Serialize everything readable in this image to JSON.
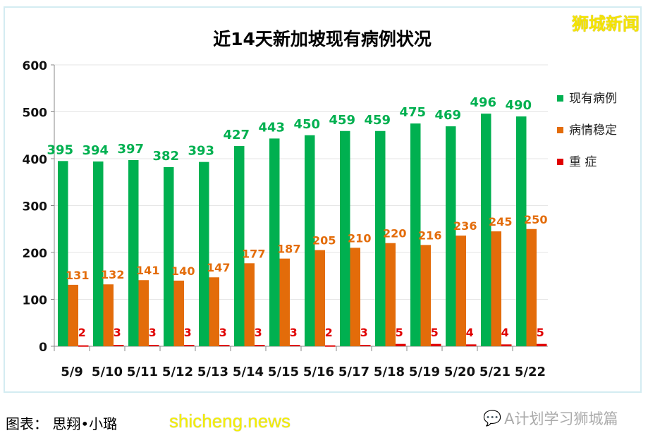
{
  "watermark_logo": "狮城新闻",
  "credit": "图表： 思翔•小璐",
  "site_watermark": "shicheng.news",
  "wechat_account": "A计划学习狮城篇",
  "chart_data": {
    "type": "bar",
    "title": "近14天新加坡现有病例状况",
    "categories": [
      "5/9",
      "5/10",
      "5/11",
      "5/12",
      "5/13",
      "5/14",
      "5/15",
      "5/16",
      "5/17",
      "5/18",
      "5/19",
      "5/20",
      "5/21",
      "5/22"
    ],
    "series": [
      {
        "name": "现有病例",
        "color": "#00b050",
        "values": [
          395,
          394,
          397,
          382,
          393,
          427,
          443,
          450,
          459,
          459,
          475,
          469,
          496,
          490
        ]
      },
      {
        "name": "病情稳定",
        "color": "#e36c0a",
        "values": [
          131,
          132,
          141,
          140,
          147,
          177,
          187,
          205,
          210,
          220,
          216,
          236,
          245,
          250
        ]
      },
      {
        "name": "重 症",
        "color": "#e00000",
        "values": [
          2,
          3,
          3,
          3,
          3,
          3,
          3,
          2,
          3,
          5,
          5,
          4,
          4,
          5
        ]
      }
    ],
    "ylim": [
      0,
      600
    ],
    "yticks": [
      0,
      100,
      200,
      300,
      400,
      500,
      600
    ],
    "grid": true,
    "legend": "right"
  }
}
